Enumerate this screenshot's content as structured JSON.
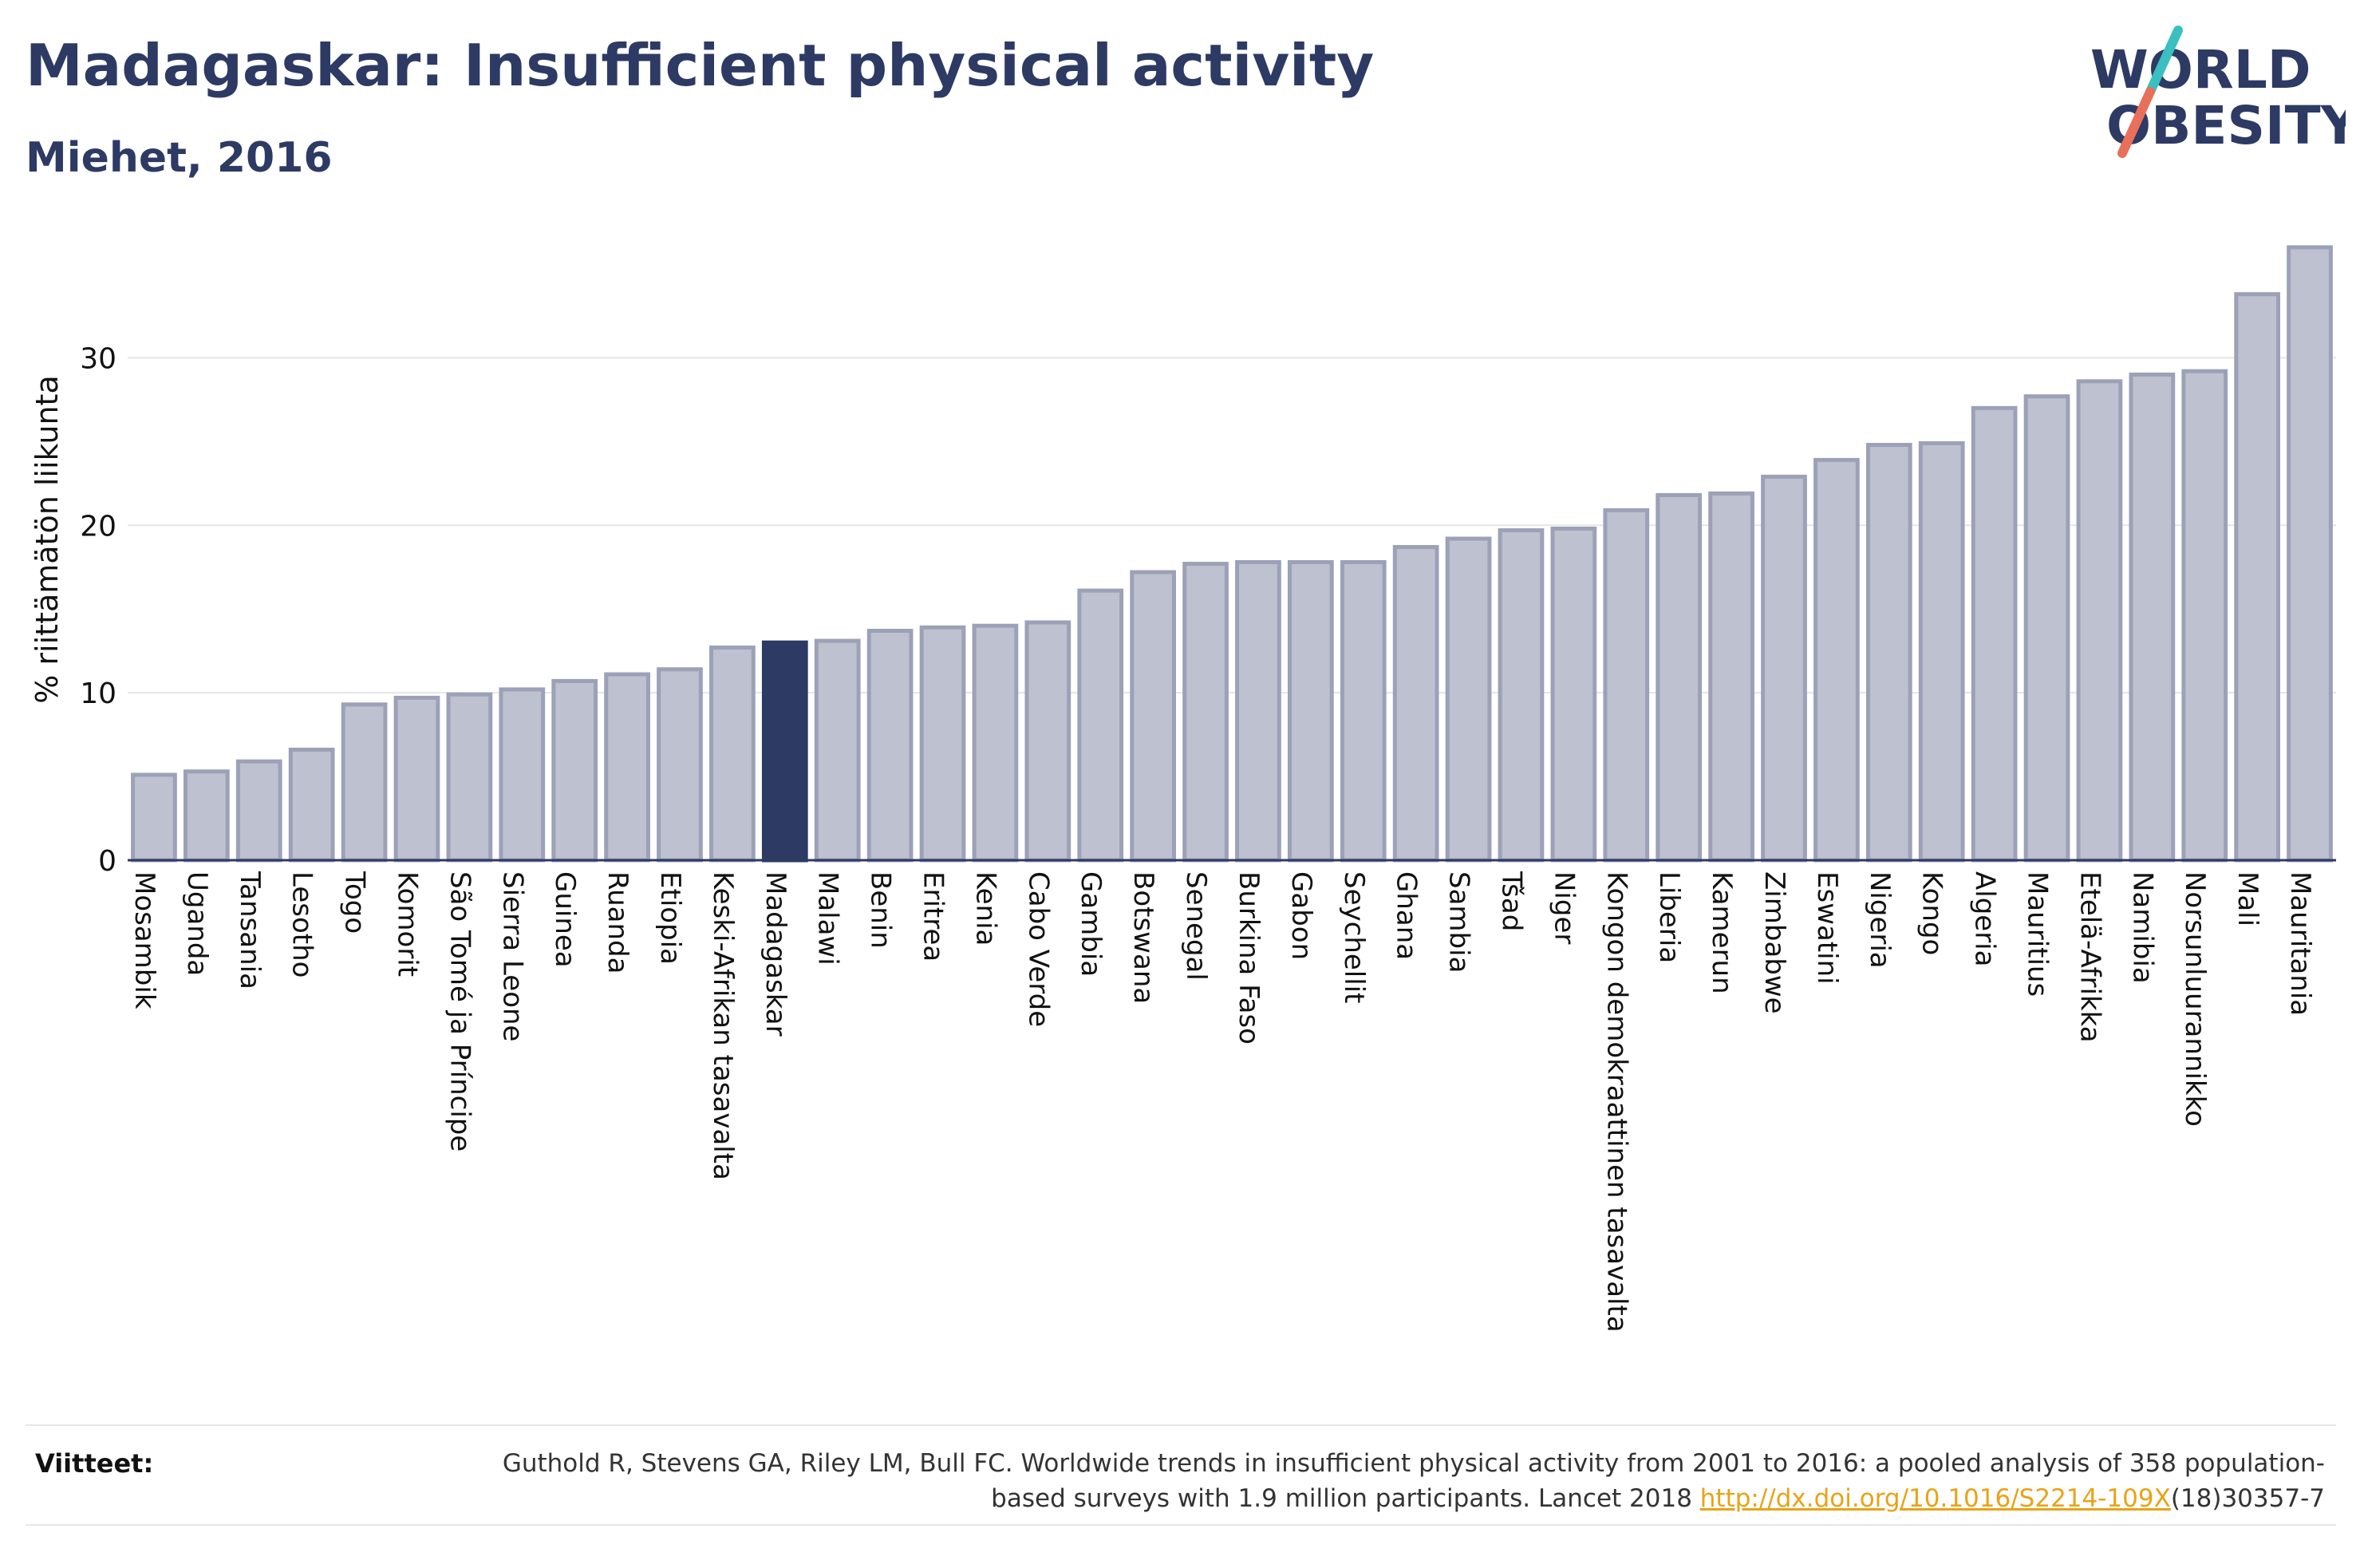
{
  "header": {
    "title": "Madagaskar: Insufficient physical activity",
    "subtitle": "Miehet, 2016"
  },
  "logo": {
    "line1": "WORLD",
    "line2": "OBESITY",
    "colors": {
      "text": "#2d3a64",
      "slash_top": "#3bbfc1",
      "slash_bottom": "#e8705a"
    }
  },
  "colors": {
    "bar_fill": "#bdc1d0",
    "bar_stroke": "#9ca1b8",
    "highlight_fill": "#2d3a64",
    "axis": "#2d3a64",
    "grid": "#e6e6e6",
    "text": "#111111"
  },
  "chart_data": {
    "type": "bar",
    "ylabel": "% riittämätön liikunta",
    "ylim": [
      0,
      37.5
    ],
    "yticks": [
      0,
      10,
      20,
      30
    ],
    "grid": true,
    "highlight": "Madagaskar",
    "categories": [
      "Mosambik",
      "Uganda",
      "Tansania",
      "Lesotho",
      "Togo",
      "Komorit",
      "São Tomé ja Príncipe",
      "Sierra Leone",
      "Guinea",
      "Ruanda",
      "Etiopia",
      "Keski-Afrikan tasavalta",
      "Madagaskar",
      "Malawi",
      "Benin",
      "Eritrea",
      "Kenia",
      "Cabo Verde",
      "Gambia",
      "Botswana",
      "Senegal",
      "Burkina Faso",
      "Gabon",
      "Seychellit",
      "Ghana",
      "Sambia",
      "Tšad",
      "Niger",
      "Kongon demokraattinen tasavalta",
      "Liberia",
      "Kamerun",
      "Zimbabwe",
      "Eswatini",
      "Nigeria",
      "Kongo",
      "Algeria",
      "Mauritius",
      "Etelä-Afrikka",
      "Namibia",
      "Norsunluurannikko",
      "Mali",
      "Mauritania"
    ],
    "values": [
      5.1,
      5.3,
      5.9,
      6.6,
      9.3,
      9.7,
      9.9,
      10.2,
      10.7,
      11.1,
      11.4,
      12.7,
      13.0,
      13.1,
      13.7,
      13.9,
      14.0,
      14.2,
      16.1,
      17.2,
      17.7,
      17.8,
      17.8,
      17.8,
      18.7,
      19.2,
      19.7,
      19.8,
      20.9,
      21.8,
      21.9,
      22.9,
      23.9,
      24.8,
      24.9,
      27.0,
      27.7,
      28.6,
      29.0,
      29.2,
      33.8,
      36.6
    ]
  },
  "references": {
    "label": "Viitteet:",
    "text_before": "Guthold R, Stevens GA, Riley LM, Bull FC. Worldwide trends in insufficient physical activity from 2001 to 2016: a pooled analysis of 358 population-based surveys with 1.9 million participants. Lancet 2018 ",
    "link": "http://dx.doi.org/10.1016/S2214-109X",
    "text_after": "(18)30357-7"
  }
}
